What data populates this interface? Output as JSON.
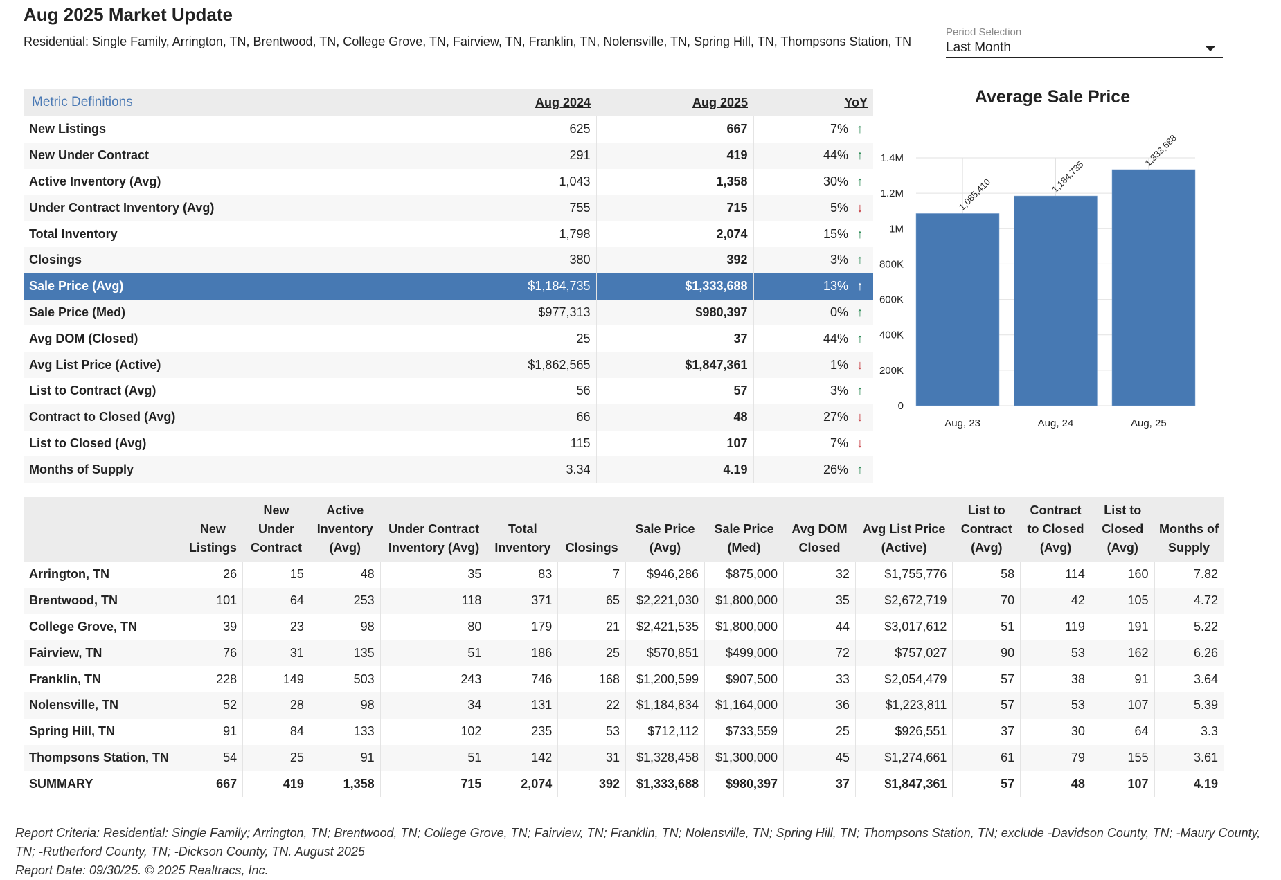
{
  "header": {
    "title": "Aug 2025 Market Update",
    "subtitle": "Residential: Single Family, Arrington, TN, Brentwood, TN, College Grove, TN, Fairview, TN, Franklin, TN, Nolensville, TN, Spring Hill, TN, Thompsons Station, TN"
  },
  "period": {
    "label": "Period Selection",
    "value": "Last Month"
  },
  "metrics": {
    "definitions_link": "Metric Definitions",
    "col_prev": "Aug 2024",
    "col_curr": "Aug 2025",
    "col_yoy": "YoY",
    "rows": [
      {
        "name": "New Listings",
        "prev": "625",
        "curr": "667",
        "yoy": "7%",
        "dir": "up"
      },
      {
        "name": "New Under Contract",
        "prev": "291",
        "curr": "419",
        "yoy": "44%",
        "dir": "up"
      },
      {
        "name": "Active Inventory (Avg)",
        "prev": "1,043",
        "curr": "1,358",
        "yoy": "30%",
        "dir": "up"
      },
      {
        "name": "Under Contract Inventory (Avg)",
        "prev": "755",
        "curr": "715",
        "yoy": "5%",
        "dir": "down"
      },
      {
        "name": "Total Inventory",
        "prev": "1,798",
        "curr": "2,074",
        "yoy": "15%",
        "dir": "up"
      },
      {
        "name": "Closings",
        "prev": "380",
        "curr": "392",
        "yoy": "3%",
        "dir": "up"
      },
      {
        "name": "Sale Price (Avg)",
        "prev": "$1,184,735",
        "curr": "$1,333,688",
        "yoy": "13%",
        "dir": "up",
        "selected": true
      },
      {
        "name": "Sale Price (Med)",
        "prev": "$977,313",
        "curr": "$980,397",
        "yoy": "0%",
        "dir": "up"
      },
      {
        "name": "Avg DOM (Closed)",
        "prev": "25",
        "curr": "37",
        "yoy": "44%",
        "dir": "up"
      },
      {
        "name": "Avg List Price (Active)",
        "prev": "$1,862,565",
        "curr": "$1,847,361",
        "yoy": "1%",
        "dir": "down"
      },
      {
        "name": "List to Contract (Avg)",
        "prev": "56",
        "curr": "57",
        "yoy": "3%",
        "dir": "up"
      },
      {
        "name": "Contract to Closed (Avg)",
        "prev": "66",
        "curr": "48",
        "yoy": "27%",
        "dir": "down"
      },
      {
        "name": "List to Closed (Avg)",
        "prev": "115",
        "curr": "107",
        "yoy": "7%",
        "dir": "down"
      },
      {
        "name": "Months of Supply",
        "prev": "3.34",
        "curr": "4.19",
        "yoy": "26%",
        "dir": "up"
      }
    ]
  },
  "chart_data": {
    "type": "bar",
    "title": "Average Sale Price",
    "categories": [
      "Aug, 23",
      "Aug, 24",
      "Aug, 25"
    ],
    "values": [
      1085410,
      1184735,
      1333688
    ],
    "value_labels": [
      "1,085,410",
      "1,184,735",
      "1,333,688"
    ],
    "yticks": [
      0,
      200000,
      400000,
      600000,
      800000,
      1000000,
      1200000,
      1400000
    ],
    "ytick_labels": [
      "0",
      "200K",
      "400K",
      "600K",
      "800K",
      "1M",
      "1.2M",
      "1.4M"
    ],
    "ylim": [
      0,
      1400000
    ],
    "xlabel": "",
    "ylabel": "",
    "grid": true,
    "bar_color": "#4779b3"
  },
  "areas": {
    "columns": [
      "",
      "New Listings",
      "New Under Contract",
      "Active Inventory (Avg)",
      "Under Contract Inventory (Avg)",
      "Total Inventory",
      "Closings",
      "Sale Price (Avg)",
      "Sale Price (Med)",
      "Avg DOM Closed",
      "Avg List Price (Active)",
      "List to Contract (Avg)",
      "Contract to Closed (Avg)",
      "List to Closed (Avg)",
      "Months of Supply"
    ],
    "rows": [
      [
        "Arrington, TN",
        "26",
        "15",
        "48",
        "35",
        "83",
        "7",
        "$946,286",
        "$875,000",
        "32",
        "$1,755,776",
        "58",
        "114",
        "160",
        "7.82"
      ],
      [
        "Brentwood, TN",
        "101",
        "64",
        "253",
        "118",
        "371",
        "65",
        "$2,221,030",
        "$1,800,000",
        "35",
        "$2,672,719",
        "70",
        "42",
        "105",
        "4.72"
      ],
      [
        "College Grove, TN",
        "39",
        "23",
        "98",
        "80",
        "179",
        "21",
        "$2,421,535",
        "$1,800,000",
        "44",
        "$3,017,612",
        "51",
        "119",
        "191",
        "5.22"
      ],
      [
        "Fairview, TN",
        "76",
        "31",
        "135",
        "51",
        "186",
        "25",
        "$570,851",
        "$499,000",
        "72",
        "$757,027",
        "90",
        "53",
        "162",
        "6.26"
      ],
      [
        "Franklin, TN",
        "228",
        "149",
        "503",
        "243",
        "746",
        "168",
        "$1,200,599",
        "$907,500",
        "33",
        "$2,054,479",
        "57",
        "38",
        "91",
        "3.64"
      ],
      [
        "Nolensville, TN",
        "52",
        "28",
        "98",
        "34",
        "131",
        "22",
        "$1,184,834",
        "$1,164,000",
        "36",
        "$1,223,811",
        "57",
        "53",
        "107",
        "5.39"
      ],
      [
        "Spring Hill, TN",
        "91",
        "84",
        "133",
        "102",
        "235",
        "53",
        "$712,112",
        "$733,559",
        "25",
        "$926,551",
        "37",
        "30",
        "64",
        "3.3"
      ],
      [
        "Thompsons Station, TN",
        "54",
        "25",
        "91",
        "51",
        "142",
        "31",
        "$1,328,458",
        "$1,300,000",
        "45",
        "$1,274,661",
        "61",
        "79",
        "155",
        "3.61"
      ]
    ],
    "summary": [
      "SUMMARY",
      "667",
      "419",
      "1,358",
      "715",
      "2,074",
      "392",
      "$1,333,688",
      "$980,397",
      "37",
      "$1,847,361",
      "57",
      "48",
      "107",
      "4.19"
    ]
  },
  "footer": {
    "criteria": "Report Criteria: Residential: Single Family; Arrington, TN; Brentwood, TN; College Grove, TN; Fairview, TN; Franklin, TN; Nolensville, TN; Spring Hill, TN; Thompsons Station, TN; exclude -Davidson County, TN; -Maury County, TN; -Rutherford County, TN; -Dickson County, TN. August 2025",
    "report_date": "Report Date: 09/30/25. © 2025 Realtracs, Inc."
  }
}
